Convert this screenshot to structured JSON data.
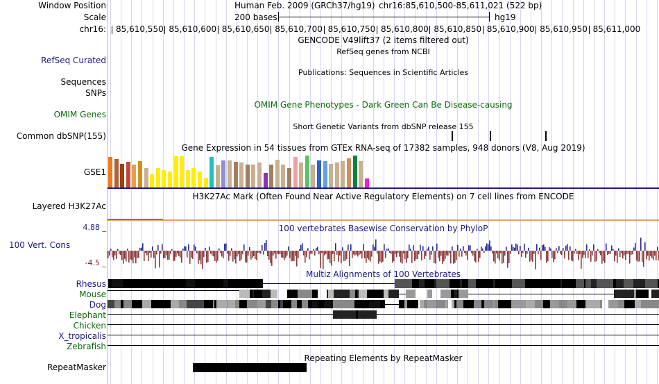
{
  "header": {
    "window_position_label": "Window Position",
    "scale_label": "Scale",
    "chrom_label": "chr16:",
    "assembly": "Human Feb. 2009 (GRCh37/hg19)",
    "region": "chr16:85,610,500-85,611,021 (522 bp)",
    "scale_text": "200 bases",
    "db": "hg19",
    "ticks": [
      "85,610,550",
      "85,610,600",
      "85,610,650",
      "85,610,700",
      "85,610,750",
      "85,610,800",
      "85,610,850",
      "85,610,900",
      "85,610,950",
      "85,611,000"
    ]
  },
  "tracks": {
    "gencode_title": "GENCODE V49lift37 (2 items filtered out)",
    "refseq_title": "RefSeq genes from NCBI",
    "refseq_label": "RefSeq Curated",
    "pubs_title": "Publications: Sequences in Scientific Articles",
    "sequences_label": "Sequences",
    "snps_label": "SNPs",
    "omim_label": "OMIM Genes",
    "omim_title": "OMIM Gene Phenotypes - Dark Green Can Be Disease-causing",
    "dbsnp_title": "Short Genetic Variants from dbSNP release 155",
    "dbsnp_label": "Common dbSNP(155)",
    "gtex_title": "Gene Expression in 54 tissues from GTEx RNA-seq of 17382 samples, 948 donors (V8, Aug 2019)",
    "gtex_label": "GSE1",
    "h3k27_label": "Layered H3K27Ac",
    "h3k27_title": "H3K27Ac Mark (Often Found Near Active Regulatory Elements) on 7 cell lines from ENCODE",
    "phylop_max": "4.88 _",
    "phylop_min": "-4.5 _",
    "phylop_label": "100 Vert. Cons",
    "phylop_title": "100 vertebrates Basewise Conservation by PhyloP",
    "multiz_title": "Multiz Alignments of 100 Vertebrates",
    "species": [
      {
        "name": "Rhesus",
        "color": "#1a1a7a"
      },
      {
        "name": "Mouse",
        "color": "#0a6a0a"
      },
      {
        "name": "Dog",
        "color": "#1a1a7a"
      },
      {
        "name": "Elephant",
        "color": "#0a6a0a"
      },
      {
        "name": "Chicken",
        "color": "#0a6a0a"
      },
      {
        "name": "X_tropicalis",
        "color": "#1a1a7a"
      },
      {
        "name": "Zebrafish",
        "color": "#0a6a0a"
      }
    ],
    "repeat_title": "Repeating Elements by RepeatMasker",
    "repeat_label": "RepeatMasker"
  },
  "gtex_colors": [
    "#f07820",
    "#b0603a",
    "#a04010",
    "#c04a3a",
    "#e4a050",
    "#d09020",
    "#c8b090",
    "#ffee00",
    "#ffee00",
    "#ffee00",
    "#ffee00",
    "#ffee00",
    "#ffee00",
    "#ffee00",
    "#ffee00",
    "#ffee00",
    "#ffee00",
    "#20c0c0",
    "#c8b090",
    "#9090d0",
    "#c8b090",
    "#a08060",
    "#c8b090",
    "#a08060",
    "#c8b090",
    "#c8b090",
    "#9030c0",
    "#a08060",
    "#c8b090",
    "#c8b090",
    "#a08060",
    "#f0a0a0",
    "#c8b090",
    "#60c060",
    "#c8b090",
    "#3060d0",
    "#60a0e0",
    "#c8b090",
    "#c8b090",
    "#c8b090",
    "#d09060",
    "#108040",
    "#c8b090",
    "#f020d0"
  ],
  "gtex_values": [
    0.95,
    0.9,
    0.75,
    0.8,
    0.72,
    0.82,
    0.6,
    0.42,
    0.6,
    0.55,
    0.5,
    0.98,
    0.98,
    0.55,
    0.6,
    0.5,
    0.3,
    0.95,
    0.7,
    0.85,
    0.85,
    0.8,
    0.78,
    0.72,
    0.72,
    0.78,
    0.45,
    0.72,
    0.88,
    0.72,
    0.6,
    0.95,
    0.78,
    1.0,
    0.72,
    0.85,
    0.82,
    0.75,
    0.78,
    0.82,
    0.92,
    1.0,
    0.82,
    0.28
  ]
}
